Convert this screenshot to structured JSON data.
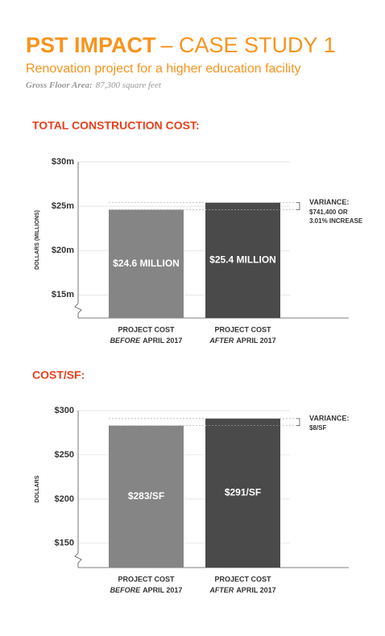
{
  "header": {
    "title_bold": "PST IMPACT",
    "title_rest": "– CASE STUDY 1",
    "subtitle": "Renovation project for a higher education facility",
    "gfa_label": "Gross Floor Area:",
    "gfa_value": "87,300 square feet"
  },
  "chart_data": [
    {
      "type": "bar",
      "title": "TOTAL CONSTRUCTION COST:",
      "ylabel": "DOLLARS (MILLIONS)",
      "categories": [
        [
          "PROJECT COST",
          "BEFORE",
          "APRIL 2017"
        ],
        [
          "PROJECT COST",
          "AFTER",
          "APRIL 2017"
        ]
      ],
      "values": [
        24.6,
        25.4
      ],
      "value_labels": [
        "$24.6 MILLION",
        "$25.4 MILLION"
      ],
      "colors": [
        "#858585",
        "#4a4a4a"
      ],
      "ylim": [
        12.4,
        30
      ],
      "yticks": [
        {
          "value": 15,
          "label": "$15m"
        },
        {
          "value": 20,
          "label": "$20m"
        },
        {
          "value": 25,
          "label": "$25m"
        },
        {
          "value": 30,
          "label": "$30m"
        }
      ],
      "grid": true,
      "annotation": {
        "title": "VARIANCE:",
        "lines": [
          "$741,400 OR",
          "3.01% INCREASE"
        ]
      }
    },
    {
      "type": "bar",
      "title": "COST/SF:",
      "ylabel": "DOLLARS",
      "categories": [
        [
          "PROJECT COST",
          "BEFORE",
          "APRIL 2017"
        ],
        [
          "PROJECT COST",
          "AFTER",
          "APRIL 2017"
        ]
      ],
      "values": [
        283,
        291
      ],
      "value_labels": [
        "$283/SF",
        "$291/SF"
      ],
      "colors": [
        "#858585",
        "#4a4a4a"
      ],
      "ylim": [
        122.5,
        300
      ],
      "yticks": [
        {
          "value": 150,
          "label": "$150"
        },
        {
          "value": 200,
          "label": "$200"
        },
        {
          "value": 250,
          "label": "$250"
        },
        {
          "value": 300,
          "label": "$300"
        }
      ],
      "grid": true,
      "annotation": {
        "title": "VARIANCE:",
        "lines": [
          "$8/SF"
        ]
      }
    }
  ]
}
